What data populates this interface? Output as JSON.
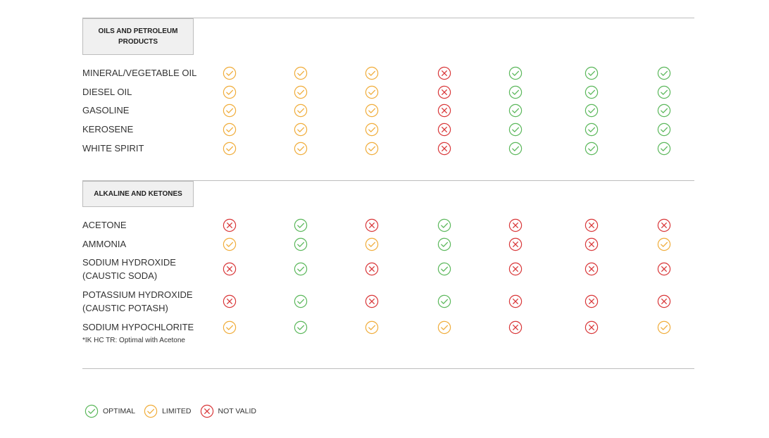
{
  "status_colors": {
    "optimal": "#5cb85c",
    "limited": "#f0ad3c",
    "not_valid": "#d9383a"
  },
  "status_icons": {
    "optimal": "check-circle-icon",
    "limited": "check-circle-icon",
    "not_valid": "x-circle-icon"
  },
  "sections": [
    {
      "title": "OILS AND PETROLEUM PRODUCTS",
      "rows": [
        {
          "label": "MINERAL/VEGETABLE OIL",
          "statuses": [
            "limited",
            "limited",
            "limited",
            "not_valid",
            "optimal",
            "optimal",
            "optimal"
          ]
        },
        {
          "label": "DIESEL OIL",
          "statuses": [
            "limited",
            "limited",
            "limited",
            "not_valid",
            "optimal",
            "optimal",
            "optimal"
          ]
        },
        {
          "label": "GASOLINE",
          "statuses": [
            "limited",
            "limited",
            "limited",
            "not_valid",
            "optimal",
            "optimal",
            "optimal"
          ]
        },
        {
          "label": "KEROSENE",
          "statuses": [
            "limited",
            "limited",
            "limited",
            "not_valid",
            "optimal",
            "optimal",
            "optimal"
          ]
        },
        {
          "label": "WHITE SPIRIT",
          "statuses": [
            "limited",
            "limited",
            "limited",
            "not_valid",
            "optimal",
            "optimal",
            "optimal"
          ]
        }
      ]
    },
    {
      "title": "ALKALINE AND KETONES",
      "rows": [
        {
          "label": "ACETONE",
          "statuses": [
            "not_valid",
            "optimal",
            "not_valid",
            "optimal",
            "not_valid",
            "not_valid",
            "not_valid"
          ]
        },
        {
          "label": "AMMONIA",
          "statuses": [
            "limited",
            "optimal",
            "limited",
            "optimal",
            "not_valid",
            "not_valid",
            "limited"
          ]
        },
        {
          "label": "SODIUM HYDROXIDE\n(CAUSTIC SODA)",
          "statuses": [
            "not_valid",
            "optimal",
            "not_valid",
            "optimal",
            "not_valid",
            "not_valid",
            "not_valid"
          ]
        },
        {
          "label": "POTASSIUM HYDROXIDE\n(CAUSTIC POTASH)",
          "statuses": [
            "not_valid",
            "optimal",
            "not_valid",
            "optimal",
            "not_valid",
            "not_valid",
            "not_valid"
          ]
        },
        {
          "label": "SODIUM HYPOCHLORITE",
          "statuses": [
            "limited",
            "optimal",
            "limited",
            "limited",
            "not_valid",
            "not_valid",
            "limited"
          ]
        }
      ]
    }
  ],
  "footnote": "*IK HC TR: Optimal with Acetone",
  "legend": [
    {
      "status": "optimal",
      "label": "OPTIMAL"
    },
    {
      "status": "limited",
      "label": "LIMITED"
    },
    {
      "status": "not_valid",
      "label": "NOT VALID"
    }
  ]
}
